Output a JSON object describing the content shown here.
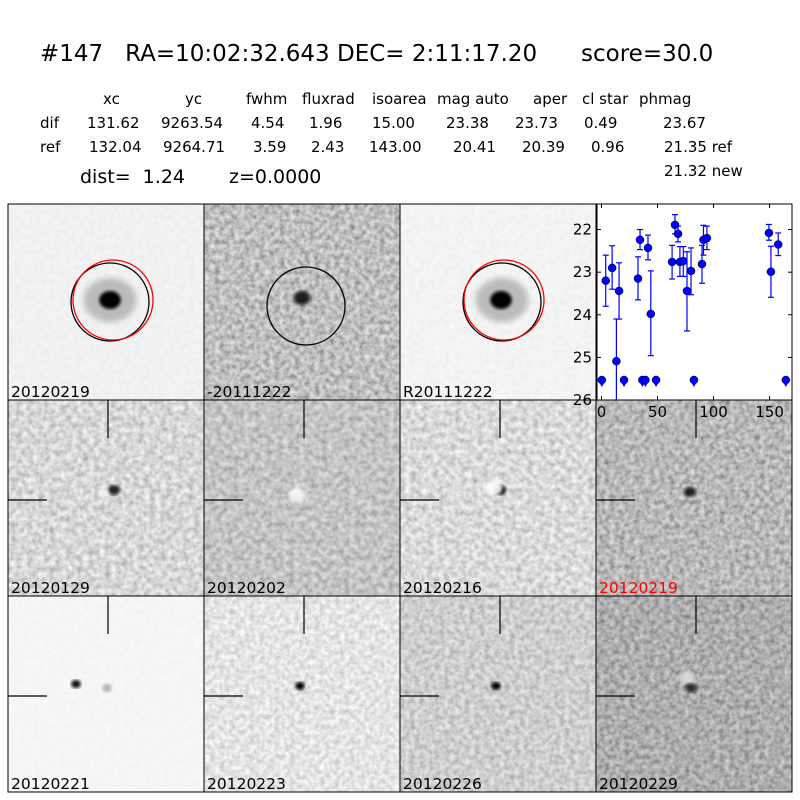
{
  "title": {
    "id": "#147",
    "ra": "RA=10:02:32.643",
    "dec": "DEC= 2:11:17.20",
    "score": "score=30.0"
  },
  "table": {
    "headers": [
      "xc",
      "yc",
      "fwhm",
      "fluxrad",
      "isoarea",
      "mag auto",
      "aper",
      "cl star",
      "phmag"
    ],
    "rows": [
      {
        "label": "dif",
        "values": [
          "131.62",
          "9263.54",
          "4.54",
          "1.96",
          "15.00",
          "23.38",
          "23.73",
          "0.49",
          "23.67"
        ]
      },
      {
        "label": "ref",
        "values": [
          "132.04",
          "9264.71",
          "3.59",
          "2.43",
          "143.00",
          "20.41",
          "20.39",
          "0.96",
          "21.35 ref"
        ]
      }
    ],
    "extra_phmag": "21.32 new",
    "dist": "dist=  1.24",
    "z": "z=0.0000"
  },
  "panels": [
    {
      "label": "20120219",
      "label_color": "#000000"
    },
    {
      "label": "-20111222",
      "label_color": "#000000"
    },
    {
      "label": "R20111222",
      "label_color": "#000000"
    },
    {
      "label": "20120129",
      "label_color": "#000000"
    },
    {
      "label": "20120202",
      "label_color": "#000000"
    },
    {
      "label": "20120216",
      "label_color": "#000000"
    },
    {
      "label": "20120219",
      "label_color": "#ff0000"
    },
    {
      "label": "20120221",
      "label_color": "#000000"
    },
    {
      "label": "20120223",
      "label_color": "#000000"
    },
    {
      "label": "20120226",
      "label_color": "#000000"
    },
    {
      "label": "20120229",
      "label_color": "#000000"
    }
  ],
  "chart_data": {
    "type": "scatter",
    "title": "",
    "xlabel": "",
    "ylabel": "",
    "xlim": [
      -4,
      170
    ],
    "ylim": [
      26,
      21.4
    ],
    "y_inverted": true,
    "grid": false,
    "xticks": [
      0,
      50,
      100,
      150
    ],
    "yticks": [
      22,
      23,
      24,
      25,
      26
    ],
    "color": "#0000ff",
    "detections": [
      {
        "x": 3.8,
        "y": 23.2,
        "lo": 22.6,
        "hi": 23.8
      },
      {
        "x": 9.5,
        "y": 22.9,
        "lo": 22.38,
        "hi": 23.4
      },
      {
        "x": 13.3,
        "y": 25.09,
        "lo": 24.1,
        "hi": 26.5
      },
      {
        "x": 15.7,
        "y": 23.44,
        "lo": 22.78,
        "hi": 24.1
      },
      {
        "x": 32.6,
        "y": 23.15,
        "lo": 22.64,
        "hi": 23.65
      },
      {
        "x": 34.4,
        "y": 22.24,
        "lo": 22.0,
        "hi": 22.47
      },
      {
        "x": 41.5,
        "y": 22.43,
        "lo": 22.13,
        "hi": 22.71
      },
      {
        "x": 44.0,
        "y": 23.98,
        "lo": 22.97,
        "hi": 24.96
      },
      {
        "x": 63.0,
        "y": 22.76,
        "lo": 22.37,
        "hi": 23.16
      },
      {
        "x": 65.6,
        "y": 21.89,
        "lo": 21.65,
        "hi": 22.1
      },
      {
        "x": 68.3,
        "y": 22.1,
        "lo": 21.92,
        "hi": 22.29
      },
      {
        "x": 70.0,
        "y": 22.76,
        "lo": 22.4,
        "hi": 23.1
      },
      {
        "x": 73.0,
        "y": 22.74,
        "lo": 22.4,
        "hi": 23.1
      },
      {
        "x": 76.3,
        "y": 23.44,
        "lo": 22.52,
        "hi": 24.38
      },
      {
        "x": 79.9,
        "y": 22.97,
        "lo": 22.43,
        "hi": 23.53
      },
      {
        "x": 89.7,
        "y": 22.81,
        "lo": 22.37,
        "hi": 23.26
      },
      {
        "x": 91.0,
        "y": 22.24,
        "lo": 21.9,
        "hi": 22.6
      },
      {
        "x": 94.1,
        "y": 22.2,
        "lo": 21.92,
        "hi": 22.47
      },
      {
        "x": 149.4,
        "y": 22.08,
        "lo": 21.88,
        "hi": 22.25
      },
      {
        "x": 151.2,
        "y": 22.99,
        "lo": 22.39,
        "hi": 23.59
      },
      {
        "x": 157.7,
        "y": 22.35,
        "lo": 22.08,
        "hi": 22.61
      }
    ],
    "upper_limits": [
      {
        "x": 0.3,
        "y": 25.53
      },
      {
        "x": 20.1,
        "y": 25.53
      },
      {
        "x": 36.5,
        "y": 25.53
      },
      {
        "x": 39.2,
        "y": 25.53
      },
      {
        "x": 48.7,
        "y": 25.53
      },
      {
        "x": 82.5,
        "y": 25.53
      },
      {
        "x": 164.5,
        "y": 25.53
      }
    ]
  }
}
